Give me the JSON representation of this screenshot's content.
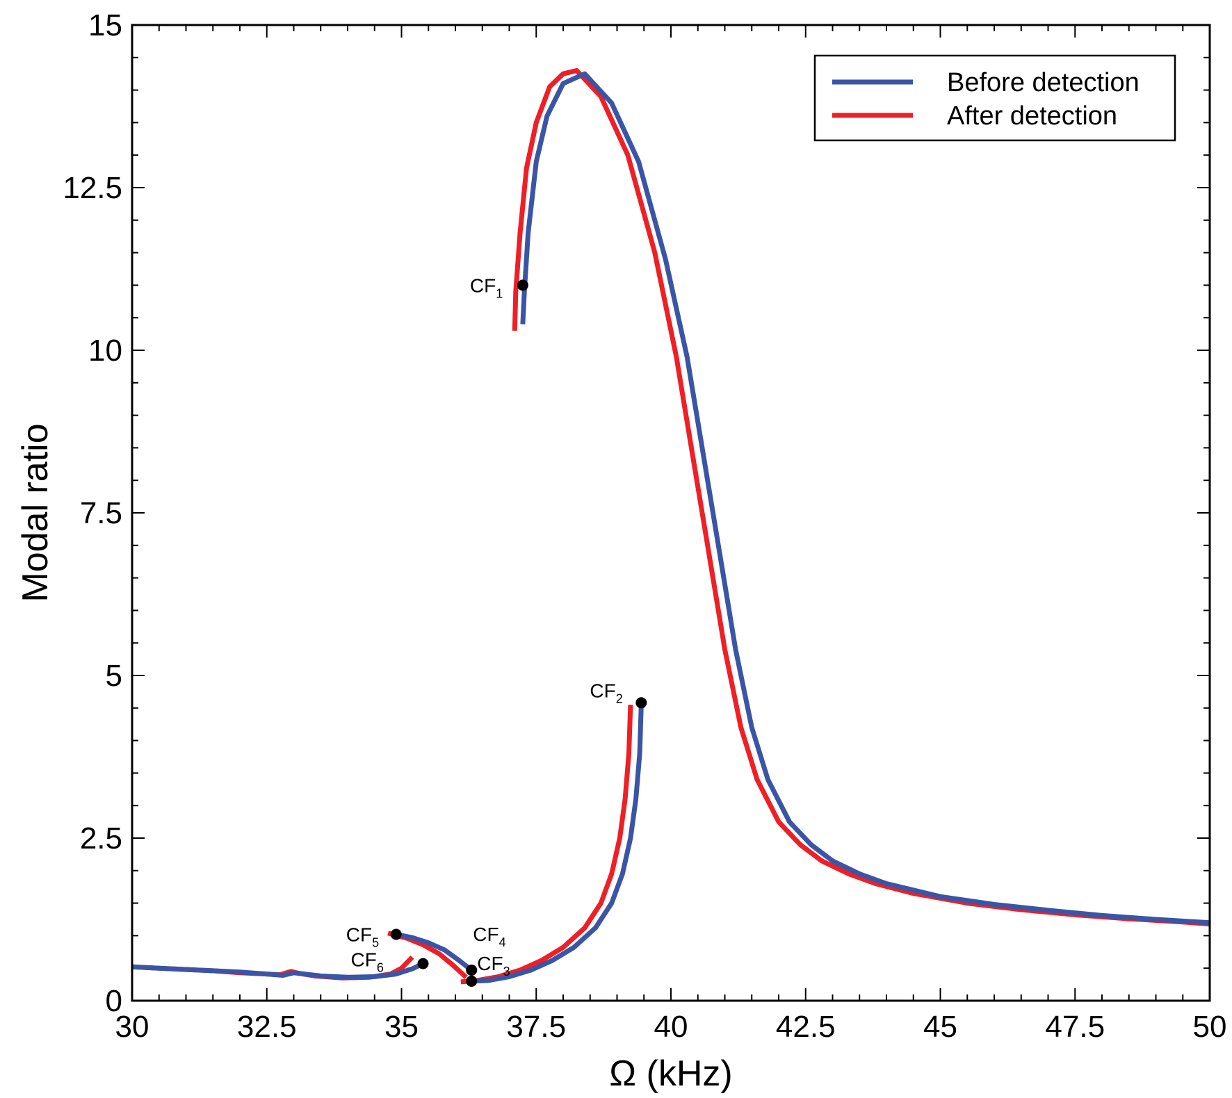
{
  "chart_data": {
    "type": "line",
    "title": "",
    "xlabel": "Ω (kHz)",
    "ylabel": "Modal ratio",
    "xlim": [
      30,
      50
    ],
    "ylim": [
      0,
      15
    ],
    "xticks": [
      30,
      32.5,
      35,
      37.5,
      40,
      42.5,
      45,
      47.5,
      50
    ],
    "xtick_labels": [
      "30",
      "32.5",
      "35",
      "37.5",
      "40",
      "42.5",
      "45",
      "47.5",
      "50"
    ],
    "yticks": [
      0,
      2.5,
      5,
      7.5,
      10,
      12.5,
      15
    ],
    "ytick_labels": [
      "0",
      "2.5",
      "5",
      "7.5",
      "10",
      "12.5",
      "15"
    ],
    "legend": {
      "position": "top-right",
      "entries": [
        {
          "name": "Before detection",
          "color": "#3a55a6"
        },
        {
          "name": "After detection",
          "color": "#ee1f25"
        }
      ]
    },
    "series": [
      {
        "name": "Before detection",
        "color": "#3a55a6",
        "branches": [
          {
            "x": [
              37.25,
              37.28,
              37.35,
              37.5,
              37.7,
              38.0,
              38.4,
              38.9,
              39.4,
              39.9,
              40.3,
              40.6,
              40.9,
              41.2,
              41.5,
              41.8,
              42.2,
              42.6,
              43.0,
              43.5,
              44.0,
              45.0,
              46.0,
              47.0,
              48.0,
              49.0,
              50.0
            ],
            "y": [
              10.4,
              10.9,
              11.8,
              12.9,
              13.6,
              14.1,
              14.25,
              13.8,
              12.9,
              11.4,
              9.9,
              8.4,
              6.9,
              5.4,
              4.2,
              3.4,
              2.75,
              2.4,
              2.15,
              1.95,
              1.8,
              1.6,
              1.48,
              1.39,
              1.31,
              1.25,
              1.2
            ]
          },
          {
            "x": [
              39.45,
              39.42,
              39.35,
              39.25,
              39.1,
              38.9,
              38.6,
              38.2,
              37.8,
              37.4,
              37.0,
              36.6,
              36.3
            ],
            "y": [
              4.58,
              3.8,
              3.1,
              2.5,
              1.95,
              1.5,
              1.12,
              0.82,
              0.62,
              0.47,
              0.37,
              0.31,
              0.3
            ]
          },
          {
            "x": [
              36.3,
              36.05,
              35.8,
              35.5,
              35.2,
              34.9
            ],
            "y": [
              0.47,
              0.63,
              0.78,
              0.89,
              0.97,
              1.02
            ]
          },
          {
            "x": [
              30.0,
              30.5,
              31.0,
              31.5,
              32.0,
              32.5,
              32.8,
              33.0,
              33.2,
              33.5,
              34.0,
              34.5,
              34.9,
              35.2,
              35.4
            ],
            "y": [
              0.52,
              0.5,
              0.48,
              0.46,
              0.44,
              0.41,
              0.39,
              0.43,
              0.41,
              0.38,
              0.36,
              0.37,
              0.41,
              0.49,
              0.57
            ]
          }
        ]
      },
      {
        "name": "After detection",
        "color": "#ee1f25",
        "branches": [
          {
            "x": [
              37.1,
              37.12,
              37.2,
              37.32,
              37.5,
              37.75,
              38.0,
              38.25,
              38.7,
              39.2,
              39.7,
              40.1,
              40.4,
              40.7,
              41.0,
              41.3,
              41.6,
              42.0,
              42.4,
              42.8,
              43.3,
              43.8,
              44.5,
              45.5,
              46.5,
              47.5,
              48.5,
              49.5,
              50.0
            ],
            "y": [
              10.3,
              10.9,
              11.8,
              12.8,
              13.5,
              14.05,
              14.25,
              14.3,
              13.9,
              13.0,
              11.5,
              9.9,
              8.4,
              6.9,
              5.4,
              4.2,
              3.4,
              2.75,
              2.4,
              2.15,
              1.95,
              1.8,
              1.65,
              1.5,
              1.4,
              1.32,
              1.26,
              1.21,
              1.18
            ]
          },
          {
            "x": [
              39.25,
              39.22,
              39.15,
              39.05,
              38.9,
              38.7,
              38.4,
              38.0,
              37.6,
              37.2,
              36.8,
              36.4,
              36.1
            ],
            "y": [
              4.55,
              3.8,
              3.1,
              2.5,
              1.95,
              1.5,
              1.12,
              0.82,
              0.62,
              0.47,
              0.37,
              0.31,
              0.29
            ]
          },
          {
            "x": [
              36.2,
              35.95,
              35.7,
              35.4,
              35.1,
              34.75
            ],
            "y": [
              0.36,
              0.55,
              0.72,
              0.86,
              0.96,
              1.04
            ]
          },
          {
            "x": [
              30.0,
              30.5,
              31.0,
              31.5,
              32.0,
              32.5,
              32.75,
              32.95,
              33.1,
              33.4,
              33.9,
              34.4,
              34.8,
              35.0,
              35.2
            ],
            "y": [
              0.52,
              0.5,
              0.48,
              0.46,
              0.43,
              0.41,
              0.4,
              0.45,
              0.42,
              0.38,
              0.35,
              0.36,
              0.41,
              0.5,
              0.67
            ]
          }
        ]
      }
    ],
    "markers": [
      {
        "label": "CF",
        "sub": "1",
        "x": 37.25,
        "y": 11.0
      },
      {
        "label": "CF",
        "sub": "2",
        "x": 39.45,
        "y": 4.58
      },
      {
        "label": "CF",
        "sub": "3",
        "x": 36.3,
        "y": 0.3
      },
      {
        "label": "CF",
        "sub": "4",
        "x": 36.3,
        "y": 0.47
      },
      {
        "label": "CF",
        "sub": "5",
        "x": 34.9,
        "y": 1.02
      },
      {
        "label": "CF",
        "sub": "6",
        "x": 35.4,
        "y": 0.57
      }
    ]
  }
}
